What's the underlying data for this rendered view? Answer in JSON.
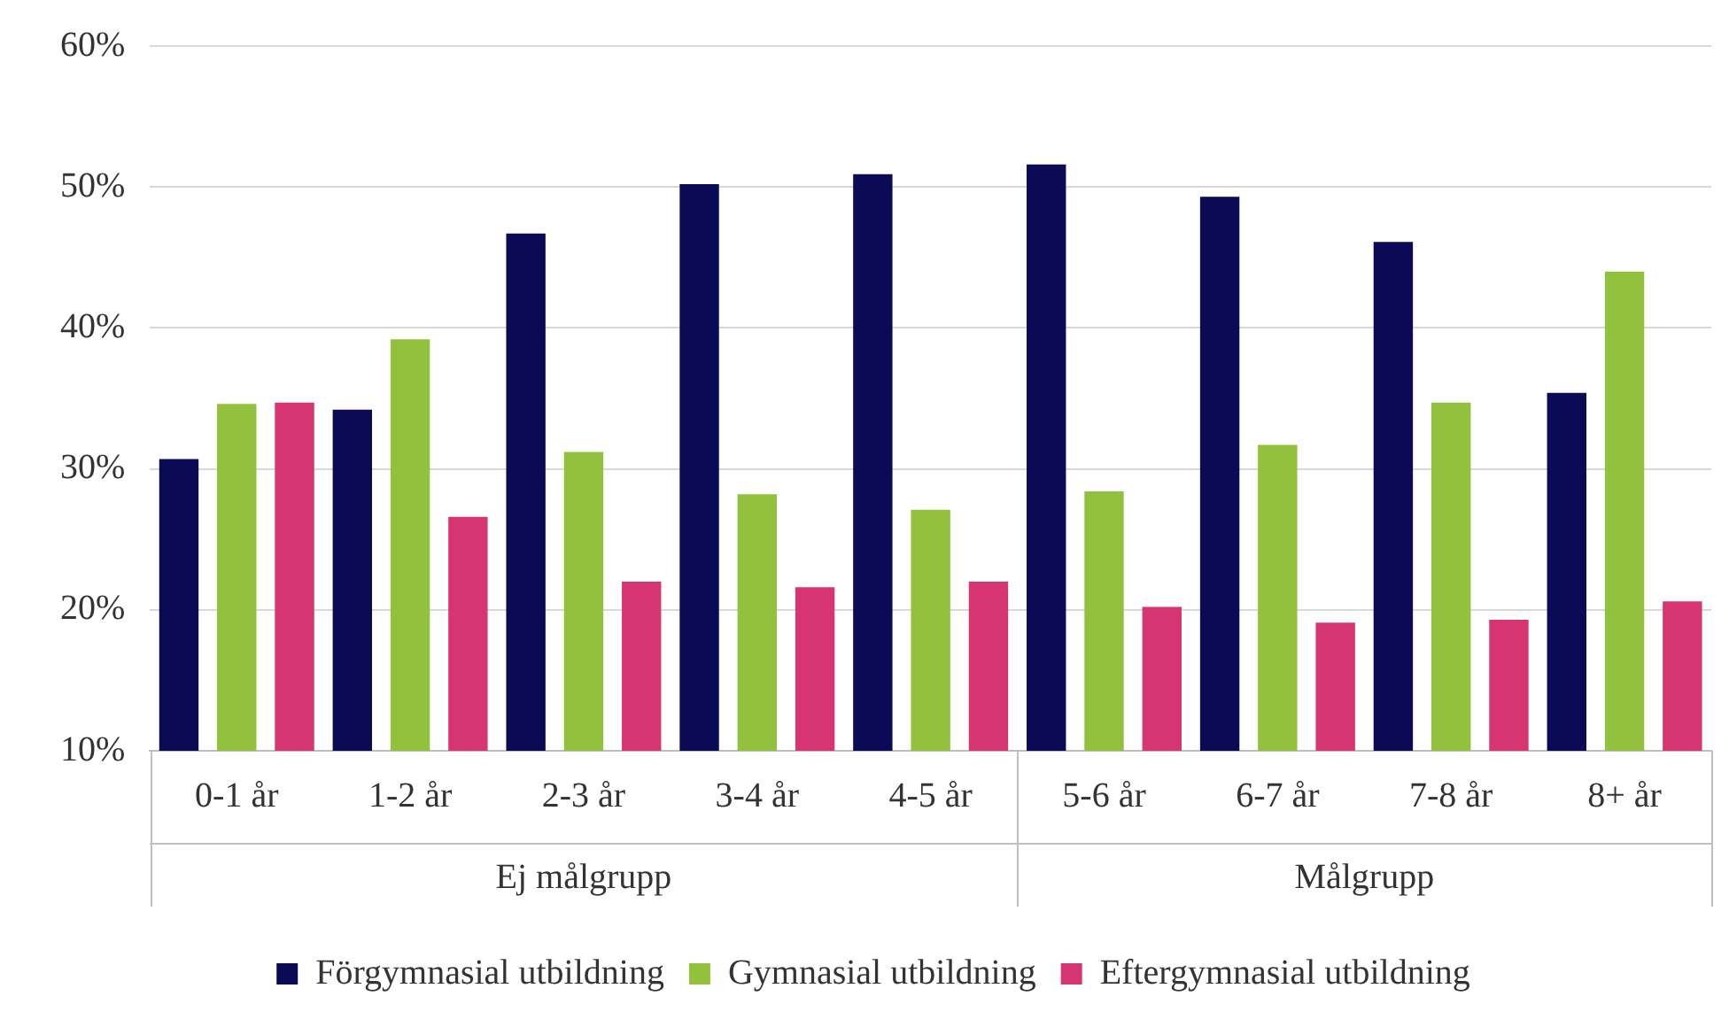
{
  "chart_data": {
    "type": "bar",
    "categories": [
      "0-1 år",
      "1-2 år",
      "2-3 år",
      "3-4 år",
      "4-5 år",
      "5-6 år",
      "6-7 år",
      "7-8 år",
      "8+ år"
    ],
    "series": [
      {
        "name": "Förgymnasial utbildning",
        "color": "#0a0a55",
        "values": [
          30.7,
          34.2,
          46.7,
          50.2,
          50.9,
          51.6,
          49.3,
          46.1,
          35.4
        ]
      },
      {
        "name": "Gymnasial utbildning",
        "color": "#92c13e",
        "values": [
          34.6,
          39.2,
          31.2,
          28.2,
          27.1,
          28.4,
          31.7,
          34.7,
          44.0
        ]
      },
      {
        "name": "Eftergymnasial utbildning",
        "color": "#d63572",
        "values": [
          34.7,
          26.6,
          22.0,
          21.6,
          22.0,
          20.2,
          19.1,
          19.3,
          20.6
        ]
      }
    ],
    "ylim": [
      10,
      60
    ],
    "yticks": [
      {
        "value": 10,
        "label": "10%"
      },
      {
        "value": 20,
        "label": "20%"
      },
      {
        "value": 30,
        "label": "30%"
      },
      {
        "value": 40,
        "label": "40%"
      },
      {
        "value": 50,
        "label": "50%"
      },
      {
        "value": 60,
        "label": "60%"
      }
    ],
    "grid": "y",
    "legend": "bottom",
    "annotations": [
      "Ej målgrupp",
      "Målgrupp"
    ]
  }
}
